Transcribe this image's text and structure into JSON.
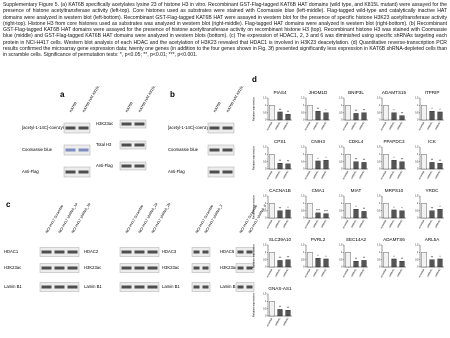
{
  "caption": "Supplementary Figure 5. (a) KAT6B specifically acetylates lysine 23 of histone H3 in vitro. Recombinant GST-Flag-tagged KAT6B HAT domains (wild type, and K815L mutant) were assayed for the presence of histone acetyltransferase activity (left-top). Core histones used as substrates were stained with Coomassie blue (left-middle). Flag-tagged wild-type and catalytically inactive HAT domains were analyzed in western blot (left-bottom). Recombinant GST-Flag-tagged KAT6B HAT were assayed in western blot for the presence of specific histone H3K23 acetyltransferase activity (right-top). Histone H3 from core histones used as substrates was analyzed in western blot (right-middle). Flag-tagged HAT domains were analyzed in western blot (right-bottom). (b) Recombinant GST-Flag-tagged KAT6B HAT domains were assayed for the presence of histone acetyltransferase activity on recombinant histone H3 (top). Recombinant histone H3 was stained with Coomassie blue (middle) and GST-Flag-tagged KAT6B HAT domains were analyzed in western blots (bottom). (c) The expression of HDAC1, 2, 3 and 6 was diminished using specific shRNAs targeting each protein in NCI-H417 cells. Western blot analysis of each HDAC and the acetylation of H3K23 revealed that HDAC1 is involved in H3K23 deacetylation. (d) Quantitative reverse-transcription PCR results confirmed the microarray gene expression data; twenty one genes (in addition to the four genes shown in Fig. 3f) presented significantly less expression in KAT6B shRNA-depleted cells than in scramble cells. Significance of permutation tests: *, p<0.05; **, p<0.01; ***, p<0.001.",
  "panel_a": {
    "label": "a",
    "blots": [
      {
        "lanes": [
          "KAT6B",
          "KAT6B HAT K815L"
        ],
        "rows": [
          "[acetyl-1-14C]-coenzyme A",
          "Coomassie blue",
          "Anti-Flag"
        ]
      },
      {
        "lanes": [
          "KAT6B",
          "KAT6B HAT K815L"
        ],
        "rows": [
          "H3K23ac",
          "Total H3",
          "Anti-Flag"
        ]
      }
    ]
  },
  "panel_b": {
    "label": "b",
    "blots": [
      {
        "lanes": [
          "KAT6B",
          "KAT6B HAT K815L"
        ],
        "rows": [
          "[acetyl-1-14C]-coenzyme A",
          "Coomassie blue",
          "Anti-Flag"
        ]
      }
    ]
  },
  "panel_c": {
    "label": "c",
    "blots": [
      {
        "lanes": [
          "NCI-H417 Scramble",
          "NCI-H417 shRNA_1a",
          "NCI-H417 shRNA_1b"
        ],
        "rows": [
          "HDAC1",
          "H3K23ac",
          "Lamin B1"
        ]
      },
      {
        "lanes": [
          "NCI-H417 Scramble",
          "NCI-H417 shRNA_2a",
          "NCI-H417 shRNA_2b"
        ],
        "rows": [
          "HDAC2",
          "H3K23ac",
          "Lamin B1"
        ]
      },
      {
        "lanes": [
          "NCI-H417 Scramble",
          "NCI-H417 shRNA_3"
        ],
        "rows": [
          "HDAC3",
          "H3K23ac",
          "Lamin B1"
        ]
      },
      {
        "lanes": [
          "NCI-H417 Scramble",
          "NCI-H417 shRNA_6"
        ],
        "rows": [
          "HDAC6",
          "H3K23ac",
          "Lamin B1"
        ]
      }
    ]
  },
  "panel_d": {
    "label": "d",
    "ylabel": "Relative expression",
    "categories": [
      "scramble",
      "shRNA1",
      "shRNA2"
    ],
    "ylim": [
      0,
      1.5
    ],
    "yticks": [
      0,
      0.5,
      1,
      1.5
    ],
    "charts": [
      {
        "title": "PIAS4",
        "values": [
          1,
          0.55,
          0.4
        ],
        "sig": [
          "**",
          "**"
        ]
      },
      {
        "title": "JHDM1D",
        "values": [
          1,
          0.6,
          0.5
        ],
        "sig": [
          "**",
          "*"
        ]
      },
      {
        "title": "BNIP3L",
        "values": [
          1,
          0.45,
          0.5
        ],
        "sig": [
          "**",
          "**"
        ]
      },
      {
        "title": "ADAMTS15",
        "values": [
          1,
          0.5,
          0.3
        ],
        "sig": [
          "*",
          "**"
        ]
      },
      {
        "title": "ITPRIP",
        "values": [
          1,
          0.6,
          0.55
        ],
        "sig": [
          "*",
          "*"
        ]
      },
      {
        "title": "CPS1",
        "values": [
          1,
          0.4,
          0.35
        ],
        "sig": [
          "**",
          "**"
        ]
      },
      {
        "title": "CNIH3",
        "values": [
          1,
          0.55,
          0.6
        ],
        "sig": [
          "*",
          "*"
        ]
      },
      {
        "title": "CDKL4",
        "values": [
          1,
          0.5,
          0.45
        ],
        "sig": [
          "**",
          "**"
        ]
      },
      {
        "title": "PPAPDC3",
        "values": [
          1,
          0.6,
          0.5
        ],
        "sig": [
          "*",
          "**"
        ]
      },
      {
        "title": "ICK",
        "values": [
          1,
          0.45,
          0.4
        ],
        "sig": [
          "**",
          "**"
        ]
      },
      {
        "title": "CACNA1B",
        "values": [
          1,
          0.5,
          0.55
        ],
        "sig": [
          "**",
          "*"
        ]
      },
      {
        "title": "CMA1",
        "values": [
          1,
          0.35,
          0.3
        ],
        "sig": [
          "***",
          "***"
        ]
      },
      {
        "title": "MIAT",
        "values": [
          1,
          0.6,
          0.45
        ],
        "sig": [
          "*",
          "**"
        ]
      },
      {
        "title": "MRPS10",
        "values": [
          1,
          0.55,
          0.5
        ],
        "sig": [
          "*",
          "*"
        ]
      },
      {
        "title": "YRDC",
        "values": [
          1,
          0.5,
          0.6
        ],
        "sig": [
          "**",
          "*"
        ]
      },
      {
        "title": "SLC39A10",
        "values": [
          1,
          0.45,
          0.5
        ],
        "sig": [
          "**",
          "**"
        ]
      },
      {
        "title": "PVRL2",
        "values": [
          1,
          0.6,
          0.55
        ],
        "sig": [
          "*",
          "*"
        ]
      },
      {
        "title": "SEC14A2",
        "values": [
          1,
          0.4,
          0.45
        ],
        "sig": [
          "**",
          "**"
        ]
      },
      {
        "title": "ADAMTS6",
        "values": [
          1,
          0.55,
          0.4
        ],
        "sig": [
          "*",
          "**"
        ]
      },
      {
        "title": "ARL5A",
        "values": [
          1,
          0.5,
          0.55
        ],
        "sig": [
          "**",
          "*"
        ]
      },
      {
        "title": "GNAS-AS1",
        "values": [
          1,
          0.45,
          0.4
        ],
        "sig": [
          "**",
          "**"
        ]
      }
    ]
  }
}
